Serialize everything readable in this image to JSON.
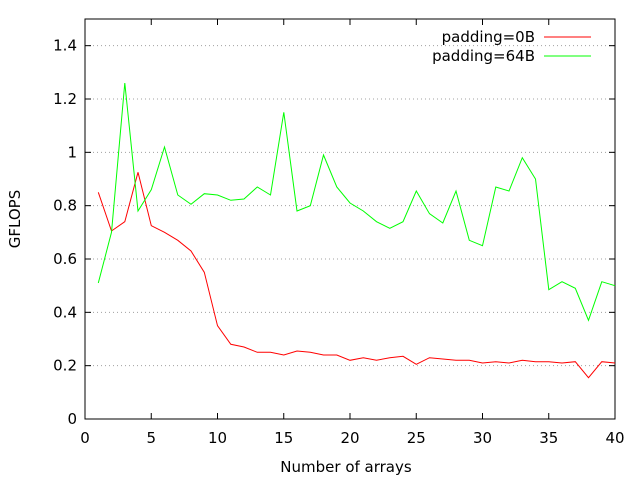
{
  "chart_data": {
    "type": "line",
    "title": "",
    "xlabel": "Number of arrays",
    "ylabel": "GFLOPS",
    "xlim": [
      0,
      40
    ],
    "ylim": [
      0,
      1.5
    ],
    "x_ticks": [
      0,
      5,
      10,
      15,
      20,
      25,
      30,
      35,
      40
    ],
    "y_ticks": [
      0,
      0.2,
      0.4,
      0.6,
      0.8,
      1,
      1.2,
      1.4
    ],
    "x_tick_labels": [
      "0",
      "5",
      "10",
      "15",
      "20",
      "25",
      "30",
      "35",
      "40"
    ],
    "y_tick_labels": [
      "0",
      "0.2",
      "0.4",
      "0.6",
      "0.8",
      "1",
      "1.2",
      "1.4"
    ],
    "grid": true,
    "legend_position": "top-right",
    "x": [
      1,
      2,
      3,
      4,
      5,
      6,
      7,
      8,
      9,
      10,
      11,
      12,
      13,
      14,
      15,
      16,
      17,
      18,
      19,
      20,
      21,
      22,
      23,
      24,
      25,
      26,
      27,
      28,
      29,
      30,
      31,
      32,
      33,
      34,
      35,
      36,
      37,
      38,
      39,
      40
    ],
    "series": [
      {
        "name": "padding=0B",
        "color": "#ff0000",
        "values": [
          0.85,
          0.705,
          0.74,
          0.925,
          0.725,
          0.7,
          0.67,
          0.63,
          0.55,
          0.35,
          0.28,
          0.27,
          0.25,
          0.25,
          0.24,
          0.255,
          0.25,
          0.24,
          0.24,
          0.22,
          0.23,
          0.22,
          0.23,
          0.235,
          0.205,
          0.23,
          0.225,
          0.22,
          0.22,
          0.21,
          0.215,
          0.21,
          0.22,
          0.215,
          0.215,
          0.21,
          0.215,
          0.155,
          0.215,
          0.21
        ]
      },
      {
        "name": "padding=64B",
        "color": "#00ff00",
        "values": [
          0.51,
          0.7,
          1.26,
          0.78,
          0.86,
          1.02,
          0.84,
          0.805,
          0.845,
          0.84,
          0.82,
          0.825,
          0.87,
          0.84,
          1.15,
          0.78,
          0.8,
          0.99,
          0.87,
          0.81,
          0.78,
          0.74,
          0.715,
          0.74,
          0.855,
          0.77,
          0.735,
          0.855,
          0.67,
          0.65,
          0.87,
          0.855,
          0.98,
          0.9,
          0.485,
          0.515,
          0.49,
          0.37,
          0.515,
          0.5
        ]
      }
    ]
  }
}
